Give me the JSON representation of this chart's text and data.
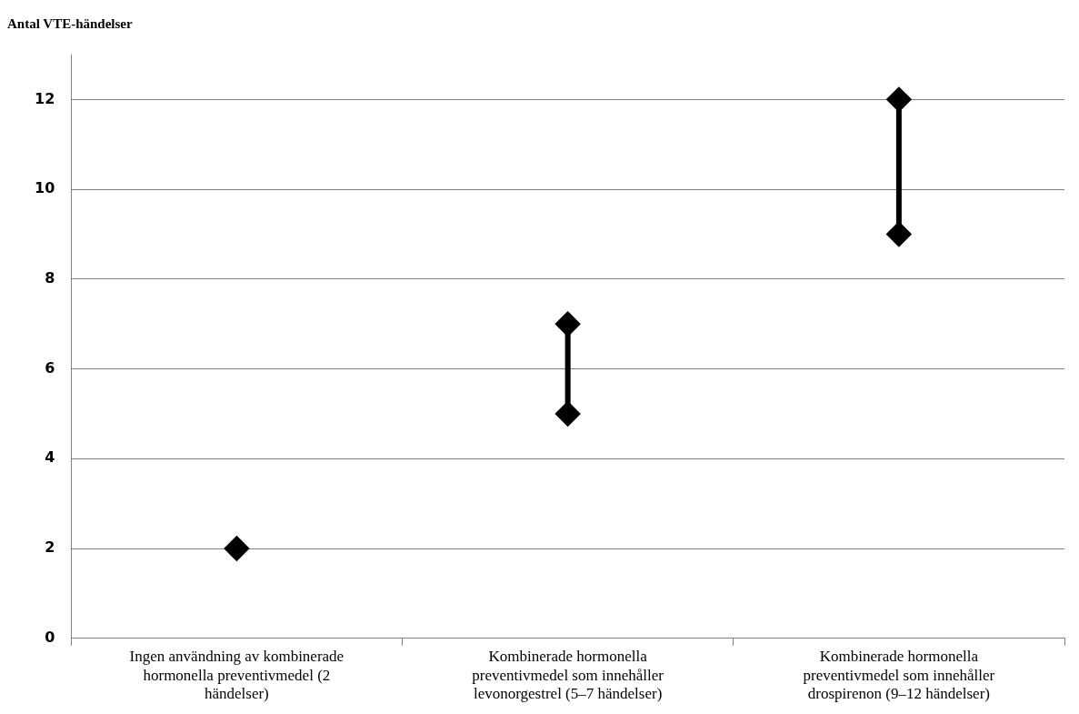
{
  "chart_data": {
    "type": "line",
    "ylabel": "Antal VTE-händelser",
    "categories": [
      "Ingen användning av kombinerade hormonella preventivmedel (2 händelser)",
      "Kombinerade hormonella preventivmedel som innehåller levonorgestrel (5–7 händelser)",
      "Kombinerade hormonella preventivmedel som innehåller drospirenon (9–12 händelser)"
    ],
    "series": [
      {
        "color": "#000000",
        "x": [
          "Ingen användning av kombinerade hormonella preventivmedel (2 händelser)"
        ],
        "values": [
          2
        ]
      },
      {
        "color": "#000000",
        "x": [
          "Kombinerade hormonella preventivmedel som innehåller levonorgestrel (5–7 händelser)",
          "Kombinerade hormonella preventivmedel som innehåller levonorgestrel (5–7 händelser)"
        ],
        "values": [
          5,
          7
        ]
      },
      {
        "color": "#000000",
        "x": [
          "Kombinerade hormonella preventivmedel som innehåller drospirenon (9–12 händelser)",
          "Kombinerade hormonella preventivmedel som innehåller drospirenon (9–12 händelser)"
        ],
        "values": [
          9,
          12
        ]
      }
    ],
    "ylim": [
      0,
      13
    ],
    "yticks": [
      0,
      2,
      4,
      6,
      8,
      10,
      12
    ],
    "grid": "y",
    "marker": "diamond",
    "line_style": "solid",
    "legend": false
  }
}
